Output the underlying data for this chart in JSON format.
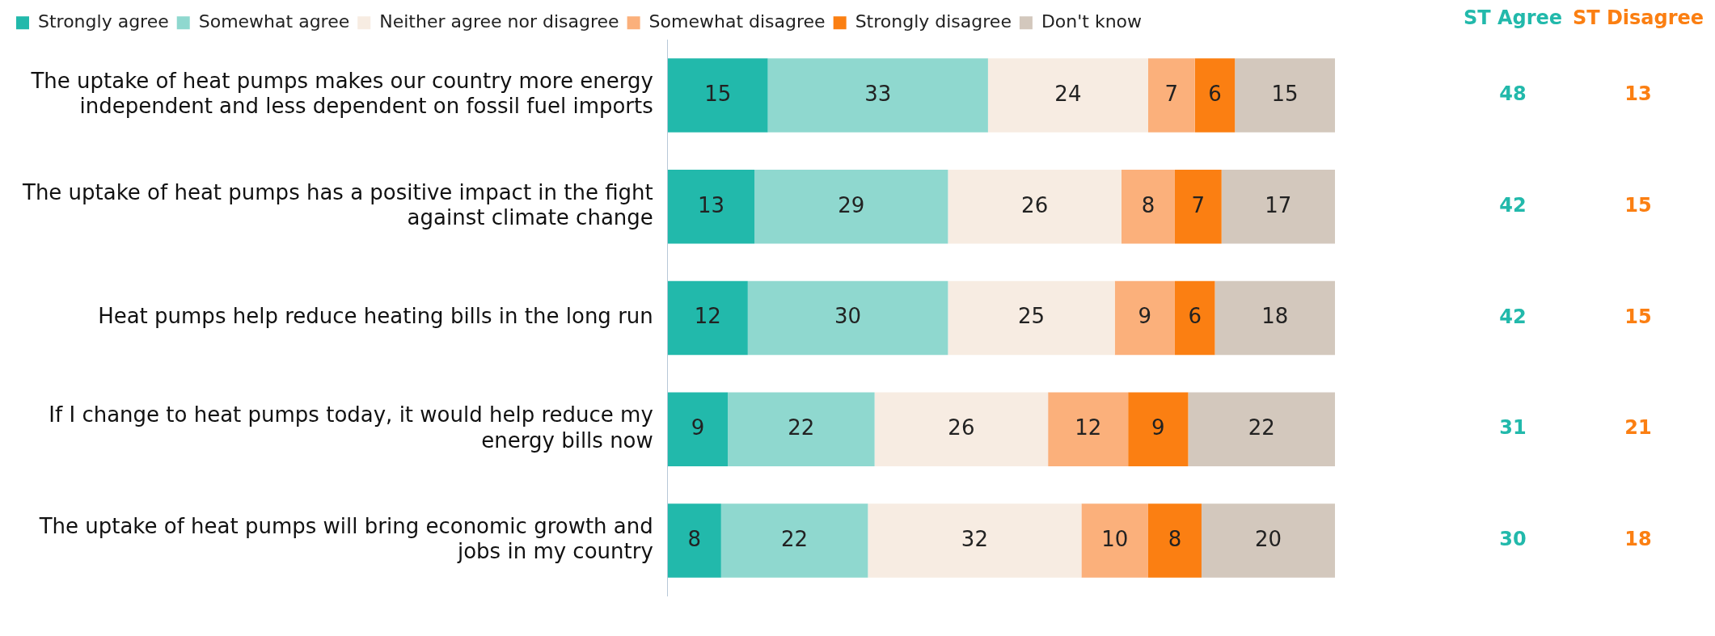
{
  "chart_data": {
    "type": "bar",
    "orientation": "horizontal",
    "stacked": true,
    "data_labels": true,
    "legend": "top left",
    "grid": false,
    "categories": [
      "The uptake of heat pumps makes our country more energy independent and less dependent on fossil fuel imports",
      "The uptake of heat pumps has a positive impact in the fight against climate change",
      "Heat pumps help reduce heating bills in the long run",
      "If I change to heat pumps today, it would help reduce my energy bills now",
      "The uptake of heat pumps will bring economic growth and jobs in my country"
    ],
    "series": [
      {
        "name": "Strongly agree",
        "color": "#22b9ab",
        "values": [
          15,
          13,
          12,
          9,
          8
        ]
      },
      {
        "name": "Somewhat agree",
        "color": "#8fd8cf",
        "values": [
          33,
          29,
          30,
          22,
          22
        ]
      },
      {
        "name": "Neither agree nor disagree",
        "color": "#f7ece2",
        "values": [
          24,
          26,
          25,
          26,
          32
        ]
      },
      {
        "name": "Somewhat disagree",
        "color": "#fbb07b",
        "values": [
          7,
          8,
          9,
          12,
          10
        ]
      },
      {
        "name": "Strongly disagree",
        "color": "#fb7f12",
        "values": [
          6,
          7,
          6,
          9,
          8
        ]
      },
      {
        "name": "Don't know",
        "color": "#d3c8bd",
        "values": [
          15,
          17,
          18,
          22,
          20
        ]
      }
    ],
    "annotations": [
      "ST Agree",
      "ST Disagree",
      "48",
      "13",
      "42",
      "15",
      "42",
      "15",
      "31",
      "21",
      "30",
      "18"
    ]
  }
}
